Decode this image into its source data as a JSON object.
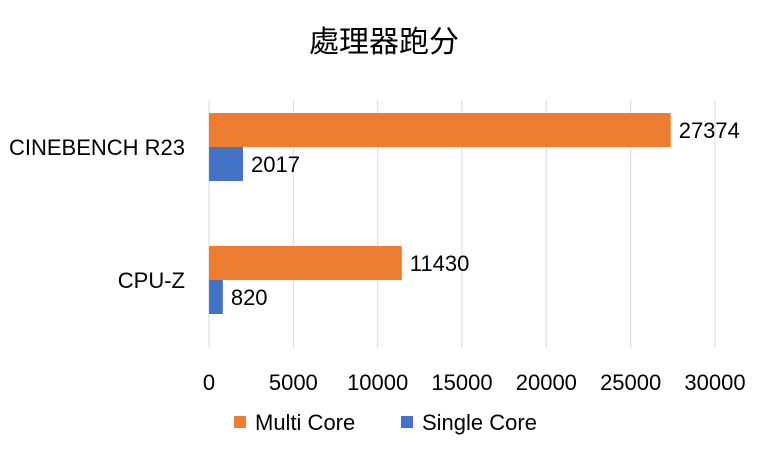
{
  "chart_data": {
    "type": "bar",
    "orientation": "horizontal",
    "title": "處理器跑分",
    "categories": [
      "CINEBENCH R23",
      "CPU-Z"
    ],
    "series": [
      {
        "name": "Multi Core",
        "values": [
          27374,
          11430
        ],
        "color": "#ED7D31"
      },
      {
        "name": "Single Core",
        "values": [
          2017,
          820
        ],
        "color": "#4472C4"
      }
    ],
    "xlim": [
      0,
      30000
    ],
    "xticks": [
      "0",
      "5000",
      "10000",
      "15000",
      "20000",
      "25000",
      "30000"
    ],
    "grid": true,
    "legend": "bottom",
    "data_labels": true
  }
}
